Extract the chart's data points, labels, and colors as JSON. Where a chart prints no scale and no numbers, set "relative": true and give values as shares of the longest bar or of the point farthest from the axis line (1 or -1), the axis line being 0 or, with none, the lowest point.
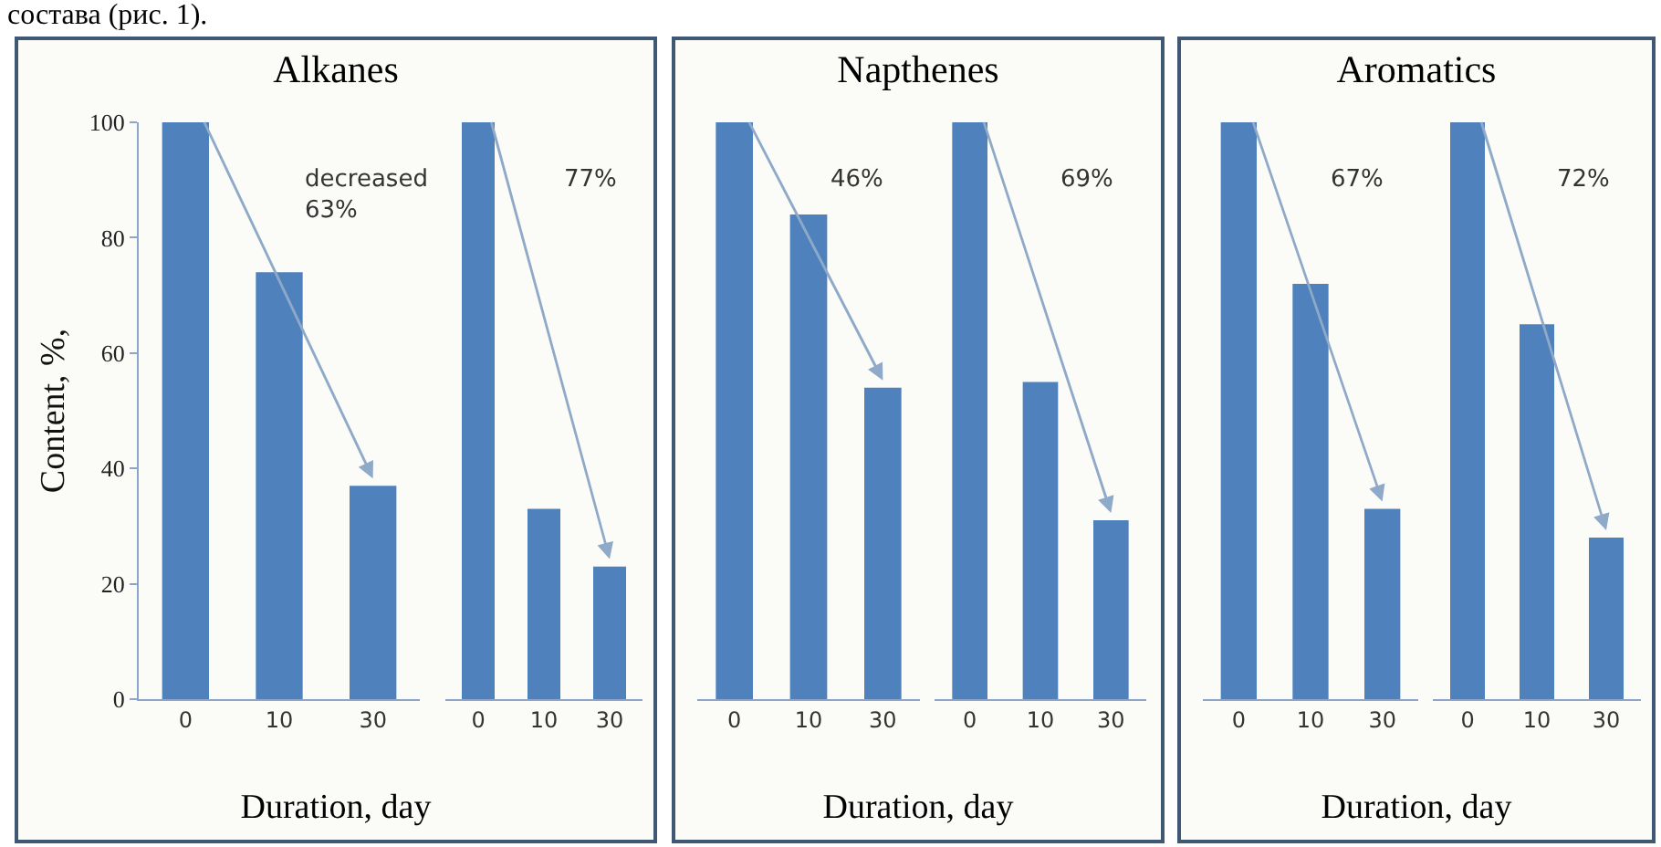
{
  "chart_data": [
    {
      "type": "bar",
      "title": "Alkanes",
      "xlabel": "Duration, day",
      "ylabel": "Content, %,",
      "categories": [
        "0",
        "10",
        "30"
      ],
      "values": [
        100,
        74,
        37
      ],
      "color": "#4f81bd",
      "ylim": [
        0,
        100
      ],
      "yticks": [
        0,
        20,
        40,
        60,
        80,
        100
      ],
      "annotations": [
        "decreased\n63%",
        "состава (рис. 1)."
      ]
    },
    {
      "type": "bar",
      "categories": [
        "0",
        "10",
        "30"
      ],
      "values": [
        100,
        33,
        23
      ],
      "color": "#4f81bd",
      "ylim": [
        0,
        100
      ],
      "yticks": [
        0,
        20,
        40,
        60,
        80,
        100
      ],
      "tick_labels": "x",
      "annotations": [
        "77%"
      ]
    },
    {
      "type": "bar",
      "title": "Napthenes",
      "xlabel": "Duration, day",
      "categories": [
        "0",
        "10",
        "30"
      ],
      "values": [
        1,
        0.84,
        0.54
      ],
      "color": "#4f81bd",
      "relative": true,
      "annotations": [
        "46%"
      ]
    },
    {
      "type": "bar",
      "categories": [
        "0",
        "10",
        "30"
      ],
      "values": [
        1,
        0.55,
        0.31
      ],
      "color": "#4f81bd",
      "relative": true,
      "annotations": [
        "69%"
      ]
    },
    {
      "type": "bar",
      "title": "Aromatics",
      "xlabel": "Duration, day",
      "categories": [
        "0",
        "10",
        "30"
      ],
      "values": [
        1,
        0.72,
        0.33
      ],
      "color": "#4f81bd",
      "relative": true,
      "annotations": [
        "67%"
      ]
    },
    {
      "type": "bar",
      "categories": [
        "0",
        "10",
        "30"
      ],
      "values": [
        1,
        0.65,
        0.28
      ],
      "color": "#4f81bd",
      "relative": true,
      "annotations": [
        "72%"
      ]
    }
  ]
}
